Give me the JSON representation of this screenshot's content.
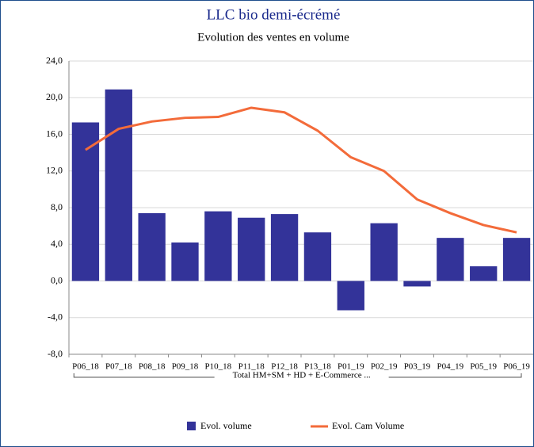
{
  "chart_data": {
    "type": "bar_line",
    "title": "LLC bio demi-écrémé",
    "subtitle": "Evolution des ventes en volume",
    "group_label": "Total HM+SM + HD + E-Commerce ...",
    "categories": [
      "P06_18",
      "P07_18",
      "P08_18",
      "P09_18",
      "P10_18",
      "P11_18",
      "P12_18",
      "P13_18",
      "P01_19",
      "P02_19",
      "P03_19",
      "P04_19",
      "P05_19",
      "P06_19"
    ],
    "series": [
      {
        "name": "Evol. volume",
        "type": "bar",
        "color": "#333399",
        "values": [
          17.3,
          20.9,
          7.4,
          4.2,
          7.6,
          6.9,
          7.3,
          5.3,
          -3.2,
          6.3,
          -0.6,
          4.7,
          1.6,
          4.7
        ]
      },
      {
        "name": "Evol. Cam Volume",
        "type": "line",
        "color": "#f36b3a",
        "values": [
          14.3,
          16.6,
          17.4,
          17.8,
          17.9,
          18.9,
          18.4,
          16.4,
          13.5,
          12.0,
          8.9,
          7.4,
          6.1,
          5.3
        ]
      }
    ],
    "ylim": [
      -8,
      24
    ],
    "yticks": [
      {
        "value": -8,
        "label": "-8,0"
      },
      {
        "value": -4,
        "label": "-4,0"
      },
      {
        "value": 0,
        "label": "0,0"
      },
      {
        "value": 4,
        "label": "4,0"
      },
      {
        "value": 8,
        "label": "8,0"
      },
      {
        "value": 12,
        "label": "12,0"
      },
      {
        "value": 16,
        "label": "16,0"
      },
      {
        "value": 20,
        "label": "20,0"
      },
      {
        "value": 24,
        "label": "24,0"
      }
    ],
    "grid": true,
    "legend": "bottom"
  }
}
